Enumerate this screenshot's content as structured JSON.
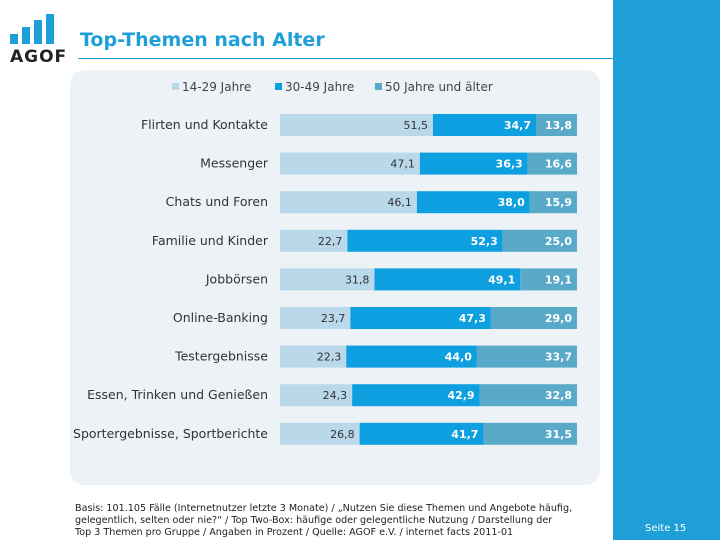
{
  "header": {
    "logo_text": "AGOF",
    "title": "Top-Themen nach Alter"
  },
  "colors": {
    "accent": "#1e9fd8",
    "series": [
      "#b9d9ea",
      "#0e9fe0",
      "#59a9c9"
    ]
  },
  "chart_data": {
    "type": "bar",
    "orientation": "horizontal",
    "stacked": true,
    "legend_position": "top",
    "categories": [
      "Flirten und Kontakte",
      "Messenger",
      "Chats und Foren",
      "Familie und Kinder",
      "Jobbörsen",
      "Online-Banking",
      "Testergebnisse",
      "Essen, Trinken und Genießen",
      "Sportergebnisse, Sportberichte"
    ],
    "series": [
      {
        "name": "14-29 Jahre",
        "values": [
          51.5,
          47.1,
          46.1,
          22.7,
          31.8,
          23.7,
          22.3,
          24.3,
          26.8
        ],
        "labels": [
          "51,5",
          "47,1",
          "46,1",
          "22,7",
          "31,8",
          "23,7",
          "22,3",
          "24,3",
          "26,8"
        ]
      },
      {
        "name": "30-49 Jahre",
        "values": [
          34.7,
          36.3,
          38.0,
          52.3,
          49.1,
          47.3,
          44.0,
          42.9,
          41.7
        ],
        "labels": [
          "34,7",
          "36,3",
          "38,0",
          "52,3",
          "49,1",
          "47,3",
          "44,0",
          "42,9",
          "41,7"
        ]
      },
      {
        "name": "50 Jahre und älter",
        "values": [
          13.8,
          16.6,
          15.9,
          25.0,
          19.1,
          29.0,
          33.7,
          32.8,
          31.5
        ],
        "labels": [
          "13,8",
          "16,6",
          "15,9",
          "25,0",
          "19,1",
          "29,0",
          "33,7",
          "32,8",
          "31,5"
        ]
      }
    ]
  },
  "footer": {
    "lines": [
      "Basis: 101.105 Fälle (Internetnutzer letzte 3 Monate) / „Nutzen Sie diese Themen und Angebote häufig,",
      "gelegentlich, selten oder nie?“ / Top Two-Box: häufige oder gelegentliche Nutzung / Darstellung der",
      "Top 3 Themen pro Gruppe / Angaben in Prozent / Quelle: AGOF e.V. / internet facts 2011-01"
    ],
    "page": "Seite 15"
  }
}
